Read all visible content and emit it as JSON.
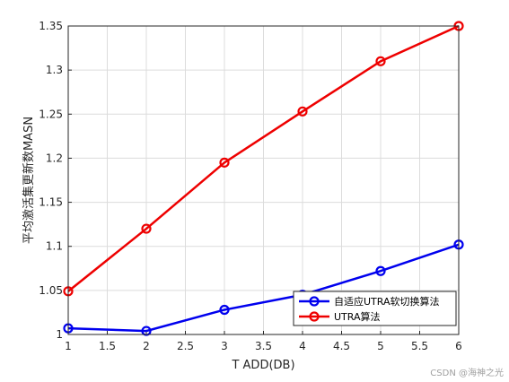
{
  "chart_data": {
    "type": "line",
    "x": [
      1,
      2,
      3,
      4,
      5,
      6
    ],
    "series": [
      {
        "name": "自适应UTRA软切换算法",
        "color": "#0000ee",
        "values": [
          1.007,
          1.004,
          1.028,
          1.045,
          1.072,
          1.102
        ]
      },
      {
        "name": "UTRA算法",
        "color": "#ee0000",
        "values": [
          1.049,
          1.12,
          1.195,
          1.253,
          1.31,
          1.35
        ]
      }
    ],
    "xlabel": "T ADD(DB)",
    "ylabel": "平均激活集更新数MASN",
    "xlim": [
      1,
      6
    ],
    "ylim": [
      1,
      1.35
    ],
    "x_ticks": [
      "1",
      "1.5",
      "2",
      "2.5",
      "3",
      "3.5",
      "4",
      "4.5",
      "5",
      "5.5",
      "6"
    ],
    "y_ticks": [
      "1",
      "1.05",
      "1.1",
      "1.15",
      "1.2",
      "1.25",
      "1.3",
      "1.35"
    ],
    "grid": true,
    "legend_position": "bottom-right",
    "marker": "circle"
  },
  "watermark": "CSDN @海神之光"
}
